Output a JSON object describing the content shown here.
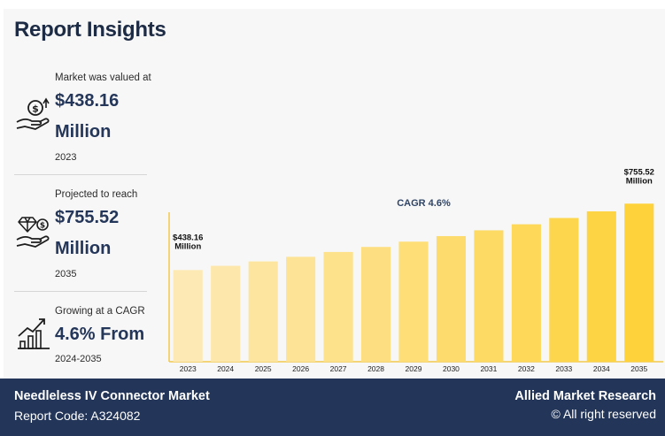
{
  "header": {
    "title": "Report Insights"
  },
  "stats": [
    {
      "label": "Market was valued at",
      "value_line1": "$438.16",
      "value_line2": "Million",
      "year": "2023",
      "icon": "money-hand-icon"
    },
    {
      "label": "Projected to reach",
      "value_line1": "$755.52",
      "value_line2": "Million",
      "year": "2035",
      "icon": "diamond-hand-icon"
    },
    {
      "label": "Growing at a CAGR",
      "value_line1": "4.6% From",
      "year": "2024-2035",
      "icon": "growth-chart-icon"
    }
  ],
  "chart_data": {
    "type": "bar",
    "categories": [
      "2023",
      "2024",
      "2025",
      "2026",
      "2027",
      "2028",
      "2029",
      "2030",
      "2031",
      "2032",
      "2033",
      "2034",
      "2035"
    ],
    "values": [
      438.16,
      458.3,
      479.4,
      501.4,
      524.5,
      548.6,
      573.9,
      600.3,
      627.9,
      656.8,
      687.0,
      718.6,
      755.52
    ],
    "ylim": [
      0,
      820
    ],
    "annotations": {
      "cagr": "CAGR 4.6%",
      "first_label_value": "$438.16",
      "first_label_unit": "Million",
      "last_label_value": "$755.52",
      "last_label_unit": "Million"
    },
    "colors": {
      "start": "#fde9b4",
      "end": "#fdd23a",
      "axis": "#f2c94c"
    },
    "grid": false,
    "legend": "none"
  },
  "footer": {
    "title": "Needleless IV Connector Market",
    "report_code": "Report Code: A324082",
    "brand": "Allied Market Research",
    "rights": "© All right reserved"
  }
}
